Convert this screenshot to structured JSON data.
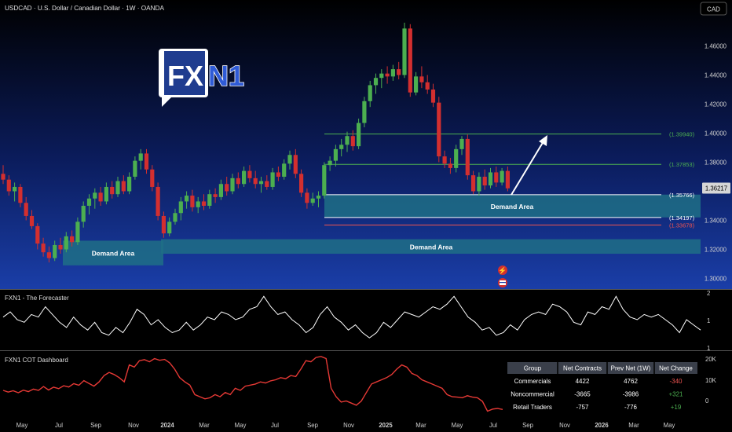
{
  "header": {
    "symbol_title": "USDCAD · U.S. Dollar / Canadian Dollar · 1W · OANDA",
    "currency_badge": "CAD"
  },
  "logo": {
    "text_left": "FX",
    "text_right": "N1"
  },
  "colors": {
    "bull": "#4caf50",
    "bear": "#d32f2f",
    "zone_fill": "#1e6f86",
    "level_green": "#4caf50",
    "level_red": "#ef5350",
    "line_white": "#ffffff",
    "cot_line": "#e53935",
    "bg_top": "#000000",
    "bg_bottom": "#1a3ea8"
  },
  "chart_data": [
    {
      "type": "candlestick",
      "title": "USDCAD · U.S. Dollar / Canadian Dollar · 1W · OANDA",
      "ylim": [
        1.29,
        1.475
      ],
      "y_ticks": [
        "1.30000",
        "1.32000",
        "1.34000",
        "1.36000",
        "1.38000",
        "1.40000",
        "1.42000",
        "1.44000",
        "1.46000"
      ],
      "x_ticks": [
        "May",
        "Jul",
        "Sep",
        "Nov",
        "2024",
        "Mar",
        "May",
        "Jul",
        "Sep",
        "Nov",
        "2025",
        "Mar",
        "May",
        "Jul",
        "Sep",
        "Nov",
        "2026",
        "Mar",
        "May"
      ],
      "last_price": "1.36217",
      "candles": [
        [
          1.372,
          1.378,
          1.365,
          1.368
        ],
        [
          1.368,
          1.371,
          1.357,
          1.36
        ],
        [
          1.36,
          1.366,
          1.353,
          1.363
        ],
        [
          1.363,
          1.365,
          1.349,
          1.352
        ],
        [
          1.352,
          1.356,
          1.34,
          1.343
        ],
        [
          1.343,
          1.347,
          1.334,
          1.336
        ],
        [
          1.336,
          1.338,
          1.32,
          1.324
        ],
        [
          1.324,
          1.328,
          1.315,
          1.318
        ],
        [
          1.318,
          1.322,
          1.311,
          1.314
        ],
        [
          1.314,
          1.326,
          1.312,
          1.323
        ],
        [
          1.323,
          1.328,
          1.317,
          1.32
        ],
        [
          1.32,
          1.332,
          1.318,
          1.329
        ],
        [
          1.329,
          1.333,
          1.322,
          1.325
        ],
        [
          1.325,
          1.342,
          1.323,
          1.339
        ],
        [
          1.339,
          1.353,
          1.335,
          1.35
        ],
        [
          1.35,
          1.358,
          1.344,
          1.355
        ],
        [
          1.355,
          1.362,
          1.348,
          1.359
        ],
        [
          1.359,
          1.363,
          1.35,
          1.353
        ],
        [
          1.353,
          1.366,
          1.351,
          1.363
        ],
        [
          1.363,
          1.367,
          1.355,
          1.358
        ],
        [
          1.358,
          1.37,
          1.356,
          1.367
        ],
        [
          1.367,
          1.371,
          1.358,
          1.36
        ],
        [
          1.36,
          1.373,
          1.358,
          1.37
        ],
        [
          1.37,
          1.384,
          1.368,
          1.381
        ],
        [
          1.381,
          1.389,
          1.375,
          1.386
        ],
        [
          1.386,
          1.389,
          1.372,
          1.375
        ],
        [
          1.375,
          1.378,
          1.36,
          1.363
        ],
        [
          1.363,
          1.366,
          1.34,
          1.343
        ],
        [
          1.343,
          1.346,
          1.328,
          1.331
        ],
        [
          1.331,
          1.342,
          1.329,
          1.339
        ],
        [
          1.339,
          1.348,
          1.337,
          1.345
        ],
        [
          1.345,
          1.356,
          1.34,
          1.353
        ],
        [
          1.353,
          1.36,
          1.348,
          1.357
        ],
        [
          1.357,
          1.361,
          1.346,
          1.349
        ],
        [
          1.349,
          1.356,
          1.345,
          1.353
        ],
        [
          1.353,
          1.358,
          1.347,
          1.35
        ],
        [
          1.35,
          1.361,
          1.348,
          1.358
        ],
        [
          1.358,
          1.362,
          1.352,
          1.356
        ],
        [
          1.356,
          1.368,
          1.354,
          1.365
        ],
        [
          1.365,
          1.37,
          1.357,
          1.36
        ],
        [
          1.36,
          1.372,
          1.358,
          1.369
        ],
        [
          1.369,
          1.373,
          1.362,
          1.365
        ],
        [
          1.365,
          1.377,
          1.363,
          1.374
        ],
        [
          1.374,
          1.378,
          1.366,
          1.369
        ],
        [
          1.369,
          1.374,
          1.362,
          1.365
        ],
        [
          1.365,
          1.37,
          1.359,
          1.367
        ],
        [
          1.367,
          1.371,
          1.361,
          1.363
        ],
        [
          1.363,
          1.376,
          1.361,
          1.373
        ],
        [
          1.373,
          1.377,
          1.367,
          1.37
        ],
        [
          1.37,
          1.382,
          1.368,
          1.379
        ],
        [
          1.379,
          1.388,
          1.375,
          1.385
        ],
        [
          1.385,
          1.389,
          1.369,
          1.372
        ],
        [
          1.372,
          1.375,
          1.356,
          1.359
        ],
        [
          1.359,
          1.362,
          1.348,
          1.352
        ],
        [
          1.352,
          1.359,
          1.35,
          1.355
        ],
        [
          1.355,
          1.36,
          1.349,
          1.357
        ],
        [
          1.357,
          1.38,
          1.355,
          1.378
        ],
        [
          1.378,
          1.384,
          1.374,
          1.381
        ],
        [
          1.381,
          1.392,
          1.377,
          1.389
        ],
        [
          1.389,
          1.396,
          1.384,
          1.392
        ],
        [
          1.392,
          1.401,
          1.387,
          1.398
        ],
        [
          1.398,
          1.402,
          1.388,
          1.391
        ],
        [
          1.391,
          1.41,
          1.389,
          1.407
        ],
        [
          1.407,
          1.425,
          1.404,
          1.422
        ],
        [
          1.422,
          1.436,
          1.418,
          1.433
        ],
        [
          1.433,
          1.441,
          1.427,
          1.438
        ],
        [
          1.438,
          1.444,
          1.431,
          1.441
        ],
        [
          1.441,
          1.446,
          1.434,
          1.439
        ],
        [
          1.439,
          1.447,
          1.436,
          1.444
        ],
        [
          1.444,
          1.449,
          1.437,
          1.44
        ],
        [
          1.44,
          1.476,
          1.438,
          1.472
        ],
        [
          1.472,
          1.475,
          1.425,
          1.428
        ],
        [
          1.428,
          1.442,
          1.426,
          1.439
        ],
        [
          1.439,
          1.446,
          1.431,
          1.435
        ],
        [
          1.435,
          1.44,
          1.427,
          1.43
        ],
        [
          1.43,
          1.434,
          1.418,
          1.421
        ],
        [
          1.421,
          1.425,
          1.38,
          1.384
        ],
        [
          1.384,
          1.388,
          1.376,
          1.379
        ],
        [
          1.379,
          1.383,
          1.372,
          1.376
        ],
        [
          1.376,
          1.392,
          1.373,
          1.389
        ],
        [
          1.389,
          1.398,
          1.385,
          1.396
        ],
        [
          1.396,
          1.399,
          1.368,
          1.371
        ],
        [
          1.371,
          1.374,
          1.358,
          1.36
        ],
        [
          1.36,
          1.373,
          1.357,
          1.37
        ],
        [
          1.37,
          1.375,
          1.361,
          1.364
        ],
        [
          1.364,
          1.376,
          1.362,
          1.373
        ],
        [
          1.373,
          1.377,
          1.363,
          1.366
        ],
        [
          1.366,
          1.376,
          1.364,
          1.374
        ],
        [
          1.374,
          1.377,
          1.36,
          1.362
        ]
      ],
      "levels": [
        {
          "value": 1.3994,
          "label": "(1.39940)",
          "color": "green"
        },
        {
          "value": 1.37853,
          "label": "(1.37853)",
          "color": "green"
        },
        {
          "value": 1.35766,
          "label": "(1.35766)",
          "color": "white"
        },
        {
          "value": 1.34197,
          "label": "(1.34197)",
          "color": "white"
        },
        {
          "value": 1.33678,
          "label": "(1.33678)",
          "color": "red"
        }
      ],
      "zones": [
        {
          "label": "Demand Area",
          "y_top": 1.3577,
          "y_bottom": 1.342
        },
        {
          "label": "Demand Area",
          "y_top": 1.327,
          "y_bottom": 1.317
        },
        {
          "label": "Demand Area",
          "y_top": 1.326,
          "y_bottom": 1.309
        }
      ]
    },
    {
      "type": "line",
      "title": "FXN1 - The Forecaster",
      "y_ticks": [
        "2",
        "1",
        "1"
      ],
      "ylim": [
        0,
        2
      ],
      "values": [
        1.1,
        1.3,
        1.0,
        0.9,
        1.2,
        1.1,
        1.5,
        1.2,
        0.9,
        0.7,
        1.1,
        0.8,
        0.6,
        0.9,
        0.5,
        0.4,
        0.7,
        0.5,
        0.9,
        1.4,
        1.2,
        0.8,
        1.0,
        0.7,
        0.5,
        0.6,
        0.9,
        0.6,
        0.8,
        1.1,
        1.0,
        1.3,
        1.2,
        1.0,
        1.1,
        1.4,
        1.5,
        1.9,
        1.5,
        1.2,
        1.3,
        1.0,
        0.8,
        0.5,
        0.7,
        1.2,
        1.5,
        1.1,
        0.9,
        0.6,
        0.8,
        0.5,
        0.3,
        0.5,
        0.9,
        0.7,
        1.0,
        1.3,
        1.2,
        1.1,
        1.3,
        1.5,
        1.4,
        1.6,
        1.9,
        1.5,
        1.1,
        0.9,
        0.6,
        0.7,
        0.4,
        0.5,
        0.8,
        0.6,
        1.0,
        1.2,
        1.3,
        1.2,
        1.6,
        1.5,
        1.3,
        0.9,
        0.8,
        1.3,
        1.2,
        1.5,
        1.4,
        1.9,
        1.4,
        1.1,
        1.0,
        1.2,
        1.1,
        1.2,
        1.0,
        0.8,
        0.5,
        1.0,
        0.8,
        0.6
      ]
    },
    {
      "type": "line",
      "title": "FXN1 COT Dashboard",
      "y_ticks": [
        "20K",
        "10K",
        "0"
      ],
      "ylim": [
        -5000,
        22000
      ],
      "values": [
        5000,
        4200,
        4800,
        3900,
        5100,
        4400,
        5600,
        5000,
        6800,
        5200,
        6500,
        5800,
        7200,
        6600,
        8200,
        7400,
        9600,
        8300,
        7000,
        9000,
        12000,
        13500,
        12500,
        11000,
        9000,
        17000,
        16000,
        19000,
        19500,
        18500,
        20000,
        19200,
        19600,
        18000,
        15000,
        11000,
        9000,
        7500,
        3000,
        2000,
        1000,
        1500,
        3000,
        2000,
        4000,
        3000,
        6000,
        5000,
        7000,
        7500,
        8000,
        9000,
        8500,
        9500,
        10000,
        11000,
        10500,
        12000,
        11500,
        15000,
        19000,
        18500,
        20500,
        21000,
        20000,
        6000,
        2000,
        -500,
        0,
        -1000,
        -2000,
        0,
        4000,
        8000,
        9000,
        10000,
        11000,
        12500,
        15000,
        17000,
        16000,
        13000,
        12000,
        10000,
        9000,
        8000,
        7000,
        6000,
        3000,
        2000,
        1800,
        1500,
        2500,
        1800,
        1500,
        -200,
        -4800,
        -3800,
        -3500,
        -4000
      ],
      "table": {
        "headers": [
          "Group",
          "Net Contracts",
          "Prev Net (1W)",
          "Net Change"
        ],
        "rows": [
          {
            "group": "Commercials",
            "net": "4422",
            "prev": "4762",
            "change": "-340",
            "change_sign": "neg"
          },
          {
            "group": "Noncommercial",
            "net": "-3665",
            "prev": "-3986",
            "change": "+321",
            "change_sign": "pos"
          },
          {
            "group": "Retail Traders",
            "net": "-757",
            "prev": "-776",
            "change": "+19",
            "change_sign": "pos"
          }
        ]
      }
    }
  ]
}
